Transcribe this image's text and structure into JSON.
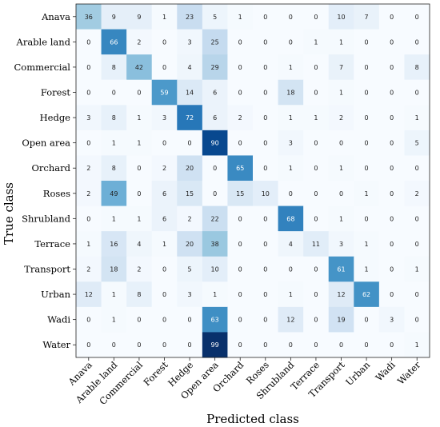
{
  "chart_data": {
    "type": "heatmap",
    "title": "",
    "xlabel": "Predicted class",
    "ylabel": "True class",
    "x_categories": [
      "Anava",
      "Arable land",
      "Commercial",
      "Forest",
      "Hedge",
      "Open area",
      "Orchard",
      "Roses",
      "Shrubland",
      "Terrace",
      "Transport",
      "Urban",
      "Wadi",
      "Water"
    ],
    "y_categories": [
      "Anava",
      "Arable land",
      "Commercial",
      "Forest",
      "Hedge",
      "Open area",
      "Orchard",
      "Roses",
      "Shrubland",
      "Terrace",
      "Transport",
      "Urban",
      "Wadi",
      "Water"
    ],
    "values": [
      [
        36,
        9,
        9,
        1,
        23,
        5,
        1,
        0,
        0,
        0,
        10,
        7,
        0,
        0
      ],
      [
        0,
        66,
        2,
        0,
        3,
        25,
        0,
        0,
        0,
        1,
        1,
        0,
        0,
        0
      ],
      [
        0,
        8,
        42,
        0,
        4,
        29,
        0,
        0,
        1,
        0,
        7,
        0,
        0,
        8
      ],
      [
        0,
        0,
        0,
        59,
        14,
        6,
        0,
        0,
        18,
        0,
        1,
        0,
        0,
        0
      ],
      [
        3,
        8,
        1,
        3,
        72,
        6,
        2,
        0,
        1,
        1,
        2,
        0,
        0,
        1
      ],
      [
        0,
        1,
        1,
        0,
        0,
        90,
        0,
        0,
        3,
        0,
        0,
        0,
        0,
        5
      ],
      [
        2,
        8,
        0,
        2,
        20,
        0,
        65,
        0,
        1,
        0,
        1,
        0,
        0,
        0
      ],
      [
        2,
        49,
        0,
        6,
        15,
        0,
        15,
        10,
        0,
        0,
        0,
        1,
        0,
        2
      ],
      [
        0,
        1,
        1,
        6,
        2,
        22,
        0,
        0,
        68,
        0,
        1,
        0,
        0,
        0
      ],
      [
        1,
        16,
        4,
        1,
        20,
        38,
        0,
        0,
        4,
        11,
        3,
        1,
        0,
        0
      ],
      [
        2,
        18,
        2,
        0,
        5,
        10,
        0,
        0,
        0,
        0,
        61,
        1,
        0,
        1
      ],
      [
        12,
        1,
        8,
        0,
        3,
        1,
        0,
        0,
        1,
        0,
        12,
        62,
        0,
        0
      ],
      [
        0,
        1,
        0,
        0,
        0,
        63,
        0,
        0,
        12,
        0,
        19,
        0,
        3,
        0
      ],
      [
        0,
        0,
        0,
        0,
        0,
        99,
        0,
        0,
        0,
        0,
        0,
        0,
        0,
        1
      ]
    ],
    "vmin": 0,
    "vmax": 99,
    "colormap": "Blues",
    "grid": false
  }
}
